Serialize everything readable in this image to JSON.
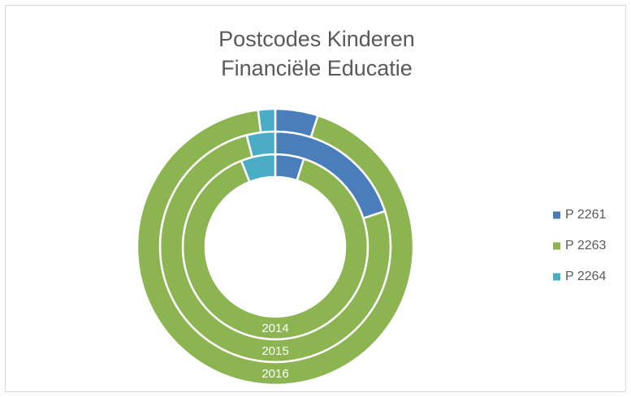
{
  "chart_data": {
    "type": "multi-donut",
    "title": [
      "Postcodes Kinderen",
      "Financiële Educatie"
    ],
    "categories": [
      "2014",
      "2015",
      "2016"
    ],
    "series": [
      {
        "name": "P 2261",
        "color": "#4a7ebb",
        "values": [
          5,
          20,
          5
        ]
      },
      {
        "name": "P 2263",
        "color": "#8cb450",
        "values": [
          89,
          76,
          93
        ]
      },
      {
        "name": "P 2264",
        "color": "#4bacc6",
        "values": [
          6,
          4,
          2
        ]
      }
    ],
    "legend": "right"
  }
}
